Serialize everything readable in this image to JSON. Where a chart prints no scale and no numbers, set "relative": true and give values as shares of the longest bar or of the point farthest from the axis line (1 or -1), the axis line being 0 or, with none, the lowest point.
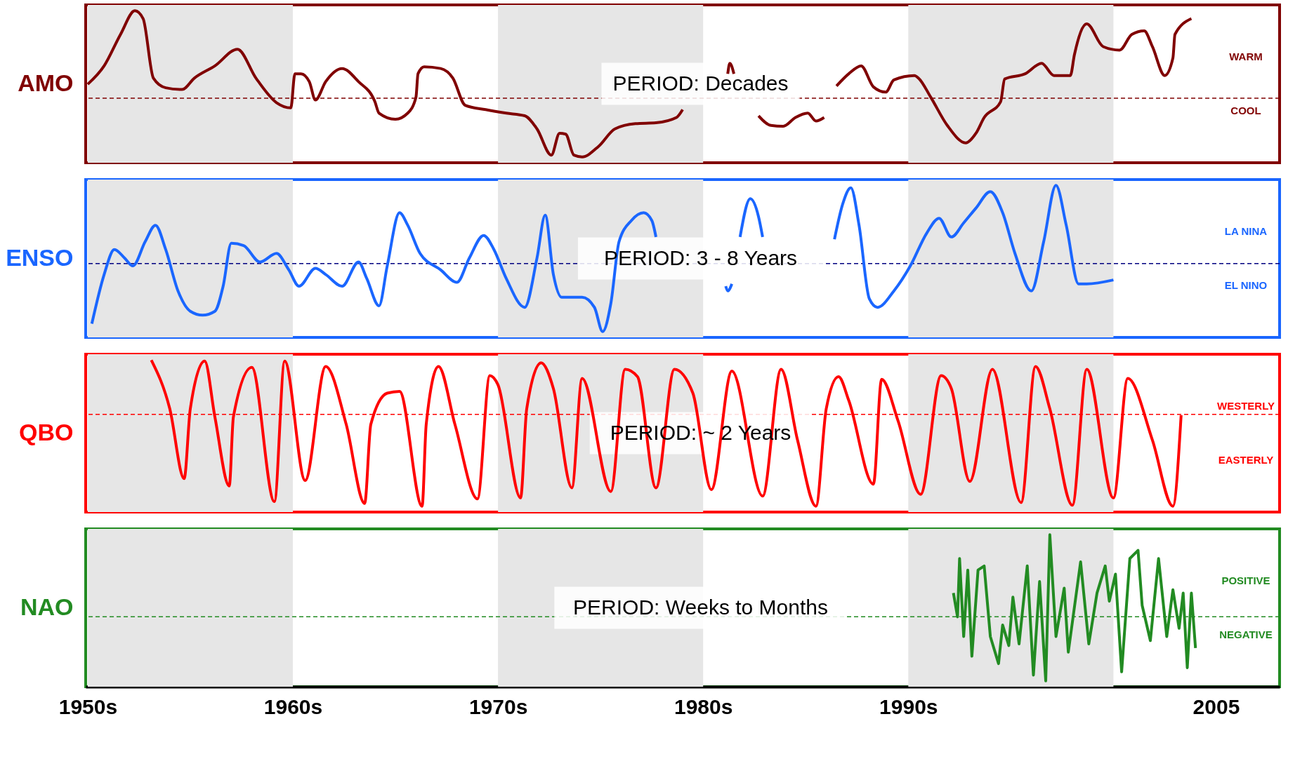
{
  "chart_data": [
    {
      "type": "line",
      "relative": true,
      "ylabel": "AMO",
      "xlim": [
        1949.9,
        2008.1
      ],
      "tick_labels": false,
      "grid": false,
      "annotations": [
        "PERIOD: Decades",
        "WARM",
        "COOL"
      ],
      "ref_lines": [
        {
          "axis": "y",
          "value": 0,
          "color": "#800000",
          "line_style": "dashed"
        }
      ],
      "bands": [
        {
          "axis": "x",
          "from": 1950,
          "to": 1960,
          "color": "#e6e6e6"
        },
        {
          "axis": "x",
          "from": 1970,
          "to": 1980,
          "color": "#e6e6e6"
        },
        {
          "axis": "x",
          "from": 1990,
          "to": 2000,
          "color": "#e6e6e6"
        }
      ],
      "x": [
        1950.0,
        1950.8,
        1951.6,
        1952.3,
        1952.7,
        1953.2,
        1953.8,
        1954.6,
        1955.2,
        1956.2,
        1957.3,
        1958.2,
        1959.2,
        1959.9,
        1960.1,
        1960.4,
        1960.8,
        1961.1,
        1961.6,
        1962.4,
        1963.2,
        1964.0,
        1964.2,
        1965.0,
        1965.6,
        1966.0,
        1966.1,
        1966.4,
        1967.2,
        1967.8,
        1968.4,
        1969.4,
        1970.4,
        1971.3,
        1971.9,
        1972.6,
        1973.0,
        1973.3,
        1973.7,
        1974.1,
        1974.9,
        1975.7,
        1976.7,
        1977.7,
        1978.7,
        1979.0,
        1980.0,
        1981.2,
        1981.3,
        1981.5,
        1982.0,
        1982.7,
        1983.3,
        1983.9,
        1984.5,
        1985.1,
        1985.5,
        1985.9,
        1986.3,
        1986.5,
        1987.1,
        1987.7,
        1988.3,
        1988.9,
        1989.3,
        1990.3,
        1990.5,
        1991.1,
        1991.9,
        1992.8,
        1993.3,
        1993.7,
        1994.5,
        1994.7,
        1995.7,
        1996.5,
        1997.1,
        1997.9,
        1998.1,
        1998.7,
        1999.5,
        2000.3,
        2000.9,
        2001.5,
        2001.9,
        2002.5,
        2002.9,
        2003.0,
        2003.8
      ],
      "series": [
        {
          "color": "#800000",
          "values": [
            0.16,
            0.37,
            0.73,
            1.0,
            0.91,
            0.23,
            0.12,
            0.1,
            0.23,
            0.37,
            0.56,
            0.23,
            -0.05,
            -0.11,
            0.28,
            0.28,
            0.19,
            -0.02,
            0.19,
            0.34,
            0.19,
            -0.04,
            -0.17,
            -0.24,
            -0.17,
            0.01,
            0.28,
            0.36,
            0.34,
            0.23,
            -0.08,
            -0.13,
            -0.17,
            -0.2,
            -0.35,
            -0.65,
            -0.4,
            -0.41,
            -0.65,
            -0.67,
            -0.55,
            -0.35,
            -0.29,
            -0.28,
            -0.22,
            -0.13,
            null,
            0.28,
            0.4,
            0.28,
            null,
            -0.2,
            -0.31,
            -0.32,
            -0.22,
            -0.17,
            -0.26,
            -0.22,
            null,
            0.14,
            0.28,
            0.37,
            0.13,
            0.07,
            0.21,
            0.26,
            0.23,
            0.01,
            -0.31,
            -0.51,
            -0.4,
            -0.22,
            -0.04,
            0.22,
            0.28,
            0.4,
            0.26,
            0.26,
            0.5,
            0.85,
            0.59,
            0.55,
            0.73,
            0.77,
            0.59,
            0.26,
            0.46,
            0.73,
            0.91
          ]
        }
      ]
    },
    {
      "type": "line",
      "relative": true,
      "ylabel": "ENSO",
      "xlim": [
        1949.9,
        2008.1
      ],
      "tick_labels": false,
      "grid": false,
      "annotations": [
        "PERIOD: 3 - 8 Years",
        "LA NINA",
        "EL NINO"
      ],
      "ref_lines": [
        {
          "axis": "y",
          "value": 0,
          "color": "#000080",
          "line_style": "dashed"
        }
      ],
      "bands": [
        {
          "axis": "x",
          "from": 1950,
          "to": 1960,
          "color": "#e6e6e6"
        },
        {
          "axis": "x",
          "from": 1970,
          "to": 1980,
          "color": "#e6e6e6"
        },
        {
          "axis": "x",
          "from": 1990,
          "to": 2000,
          "color": "#e6e6e6"
        }
      ],
      "x": [
        1950.2,
        1950.8,
        1951.3,
        1951.8,
        1952.2,
        1952.8,
        1953.3,
        1953.8,
        1954.4,
        1955.0,
        1955.6,
        1956.2,
        1956.6,
        1957.0,
        1957.6,
        1958.4,
        1959.2,
        1959.8,
        1960.3,
        1961.1,
        1961.6,
        1962.4,
        1963.2,
        1963.6,
        1964.2,
        1964.6,
        1965.2,
        1965.6,
        1966.2,
        1967.2,
        1968.0,
        1968.6,
        1969.3,
        1969.8,
        1970.4,
        1971.3,
        1971.9,
        1972.3,
        1972.7,
        1973.1,
        1974.1,
        1974.7,
        1975.1,
        1975.5,
        1975.9,
        1976.5,
        1977.1,
        1977.5,
        1977.7,
        1978.5,
        1981.1,
        1981.2,
        1981.4,
        1981.7,
        1981.8,
        1982.3,
        1982.7,
        1982.9,
        1984.0,
        1986.4,
        1986.8,
        1987.2,
        1987.6,
        1988.1,
        1988.5,
        1989.3,
        1990.1,
        1990.9,
        1991.5,
        1992.1,
        1992.7,
        1993.3,
        1994.0,
        1994.6,
        1995.2,
        1996.0,
        1996.6,
        1997.2,
        1997.7,
        1998.3,
        1998.7,
        2000.0
      ],
      "series": [
        {
          "color": "#1a66ff",
          "values": [
            -0.77,
            -0.14,
            0.18,
            0.07,
            -0.03,
            0.28,
            0.49,
            0.18,
            -0.35,
            -0.61,
            -0.66,
            -0.61,
            -0.29,
            0.26,
            0.23,
            0.02,
            0.13,
            -0.08,
            -0.29,
            -0.06,
            -0.14,
            -0.29,
            0.02,
            -0.19,
            -0.54,
            -0.03,
            0.65,
            0.49,
            0.13,
            -0.08,
            -0.24,
            0.07,
            0.36,
            0.18,
            -0.19,
            -0.56,
            0.07,
            0.62,
            -0.14,
            -0.43,
            -0.43,
            -0.56,
            -0.87,
            -0.51,
            0.28,
            0.55,
            0.65,
            0.55,
            0.34,
            null,
            -0.29,
            -0.35,
            -0.26,
            null,
            0.34,
            0.83,
            0.6,
            0.34,
            null,
            0.31,
            0.76,
            0.97,
            0.49,
            -0.45,
            -0.56,
            -0.35,
            -0.03,
            0.39,
            0.58,
            0.34,
            0.52,
            0.71,
            0.92,
            0.65,
            0.13,
            -0.35,
            0.28,
            1.0,
            0.49,
            -0.26,
            -0.26,
            -0.21
          ]
        }
      ]
    },
    {
      "type": "line",
      "relative": true,
      "ylabel": "QBO",
      "xlim": [
        1949.9,
        2008.1
      ],
      "tick_labels": false,
      "grid": false,
      "annotations": [
        "PERIOD: ~ 2 Years",
        "WESTERLY",
        "EASTERLY"
      ],
      "ref_lines": [
        {
          "axis": "y",
          "value": 0,
          "color": "#ff0000",
          "line_style": "dashed"
        }
      ],
      "bands": [
        {
          "axis": "x",
          "from": 1950,
          "to": 1960,
          "color": "#e6e6e6"
        },
        {
          "axis": "x",
          "from": 1970,
          "to": 1980,
          "color": "#e6e6e6"
        },
        {
          "axis": "x",
          "from": 1990,
          "to": 2000,
          "color": "#e6e6e6"
        }
      ],
      "x": [
        1953.1,
        1954.0,
        1954.7,
        1955.0,
        1955.7,
        1956.2,
        1956.9,
        1957.1,
        1958.0,
        1959.1,
        1959.6,
        1960.6,
        1961.6,
        1962.6,
        1963.5,
        1963.8,
        1964.6,
        1965.2,
        1966.3,
        1966.5,
        1967.1,
        1967.9,
        1969.0,
        1969.6,
        1970.0,
        1971.1,
        1971.4,
        1972.1,
        1972.7,
        1973.6,
        1974.1,
        1975.5,
        1976.2,
        1976.8,
        1977.7,
        1978.6,
        1979.5,
        1980.4,
        1981.4,
        1982.9,
        1983.8,
        1984.6,
        1985.5,
        1986.0,
        1986.6,
        1987.1,
        1988.3,
        1988.7,
        1989.5,
        1990.6,
        1991.6,
        1992.1,
        1993.0,
        1994.1,
        1995.5,
        1996.2,
        1996.9,
        1998.0,
        1998.7,
        2000.0,
        2000.7,
        2001.9,
        2002.9,
        2003.3
      ],
      "series": [
        {
          "color": "#ff0000",
          "values": [
            0.59,
            0.06,
            -0.7,
            0.06,
            0.58,
            -0.03,
            -0.78,
            -0.03,
            0.51,
            -0.95,
            0.58,
            -0.72,
            0.52,
            -0.11,
            -0.97,
            -0.11,
            0.23,
            0.25,
            -1.0,
            -0.11,
            0.52,
            -0.11,
            -0.92,
            0.42,
            0.32,
            -0.91,
            0.06,
            0.56,
            0.28,
            -0.8,
            0.39,
            -0.84,
            0.49,
            0.41,
            -0.8,
            0.49,
            0.23,
            -0.82,
            0.47,
            -0.89,
            0.49,
            -0.28,
            -1.0,
            0.06,
            0.41,
            0.15,
            -0.76,
            0.38,
            -0.07,
            -0.87,
            0.42,
            0.28,
            -0.73,
            0.49,
            -0.96,
            0.52,
            0.06,
            -0.99,
            0.49,
            -0.91,
            0.39,
            -0.28,
            -1.0,
            -0.01
          ]
        }
      ]
    },
    {
      "type": "line",
      "relative": true,
      "ylabel": "NAO",
      "xlim": [
        1949.9,
        2008.1
      ],
      "tick_labels": "x",
      "grid": false,
      "xticks": [
        {
          "value": 1950,
          "label": "1950s"
        },
        {
          "value": 1960,
          "label": "1960s"
        },
        {
          "value": 1970,
          "label": "1970s"
        },
        {
          "value": 1980,
          "label": "1980s"
        },
        {
          "value": 1990,
          "label": "1990s"
        },
        2005
      ],
      "annotations": [
        "PERIOD: Weeks to Months",
        "POSITIVE",
        "NEGATIVE"
      ],
      "ref_lines": [
        {
          "axis": "y",
          "value": 0,
          "color": "#228b22",
          "line_style": "dashed"
        }
      ],
      "bands": [
        {
          "axis": "x",
          "from": 1950,
          "to": 1960,
          "color": "#e6e6e6"
        },
        {
          "axis": "x",
          "from": 1970,
          "to": 1980,
          "color": "#e6e6e6"
        },
        {
          "axis": "x",
          "from": 1990,
          "to": 2000,
          "color": "#e6e6e6"
        }
      ],
      "x": [
        1992.2,
        1992.4,
        1992.5,
        1992.7,
        1992.9,
        1993.1,
        1993.4,
        1993.7,
        1994.0,
        1994.4,
        1994.6,
        1994.9,
        1995.1,
        1995.4,
        1995.8,
        1996.1,
        1996.4,
        1996.7,
        1996.9,
        1997.2,
        1997.6,
        1997.8,
        1998.4,
        1998.8,
        1999.2,
        1999.6,
        1999.8,
        2000.1,
        2000.4,
        2000.8,
        2001.2,
        2001.4,
        2001.8,
        2002.2,
        2002.6,
        2002.9,
        2003.2,
        2003.4,
        2003.6,
        2003.8,
        2004.0
      ],
      "series": [
        {
          "color": "#228b22",
          "values": [
            0.29,
            0.0,
            0.71,
            -0.24,
            0.57,
            -0.48,
            0.57,
            0.62,
            -0.24,
            -0.57,
            -0.1,
            -0.35,
            0.24,
            -0.33,
            0.62,
            -0.71,
            0.43,
            -0.78,
            1.0,
            -0.24,
            0.35,
            -0.43,
            0.67,
            -0.33,
            0.29,
            0.62,
            0.19,
            0.52,
            -0.67,
            0.71,
            0.81,
            0.14,
            -0.29,
            0.71,
            -0.24,
            0.33,
            -0.14,
            0.29,
            -0.62,
            0.29,
            -0.38
          ]
        }
      ]
    }
  ]
}
